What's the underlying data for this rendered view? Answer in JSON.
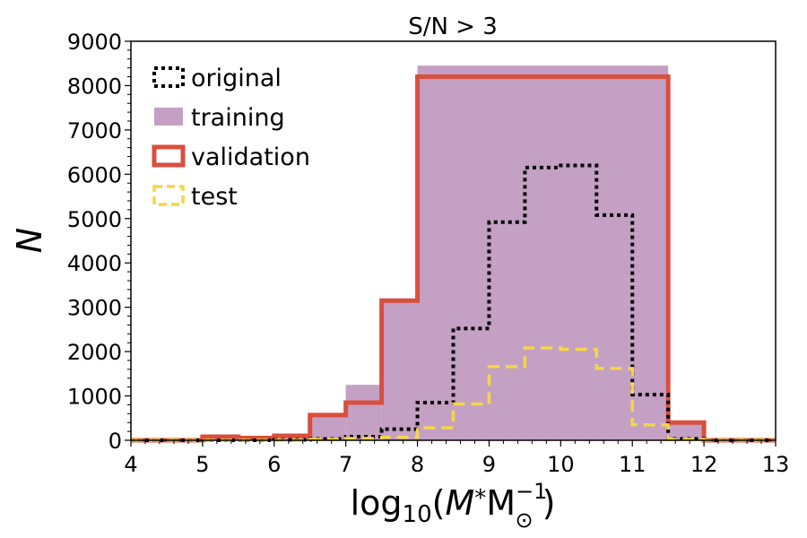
{
  "chart_data": {
    "type": "histogram",
    "title": "S/N > 3",
    "xlabel": {
      "prefix": "log",
      "sub": "10",
      "open": "(",
      "var": "M",
      "var_sub": "*",
      "unit": "M",
      "unit_sub": "⊙",
      "unit_sup": "−1",
      "close": ")"
    },
    "ylabel": "N",
    "xlim": [
      4,
      13
    ],
    "ylim": [
      0,
      9000
    ],
    "xticks": [
      4,
      5,
      6,
      7,
      8,
      9,
      10,
      11,
      12,
      13
    ],
    "yticks": [
      0,
      1000,
      2000,
      3000,
      4000,
      5000,
      6000,
      7000,
      8000,
      9000
    ],
    "series": [
      {
        "name": "training",
        "style": "filled",
        "color": "#c4a0c4",
        "edges": [
          4,
          4.5,
          5,
          5.5,
          6,
          6.5,
          7,
          7.5,
          8,
          11.5,
          12,
          12.5,
          13
        ],
        "values": [
          0,
          0,
          60,
          50,
          100,
          550,
          1250,
          3150,
          8450,
          400,
          0,
          0
        ]
      },
      {
        "name": "validation",
        "style": "solid",
        "color": "#d94f3d",
        "edges": [
          4,
          4.5,
          5,
          5.5,
          6,
          6.5,
          7,
          7.5,
          8,
          11.5,
          12,
          12.5,
          13
        ],
        "values": [
          0,
          0,
          80,
          50,
          100,
          570,
          850,
          3150,
          8200,
          400,
          0,
          0
        ]
      },
      {
        "name": "original",
        "style": "dotted",
        "color": "#000000",
        "edges": [
          4,
          4.5,
          5,
          5.5,
          6,
          6.5,
          7,
          7.5,
          8,
          8.5,
          9,
          9.5,
          10,
          10.5,
          11,
          11.5,
          12,
          12.5,
          13
        ],
        "values": [
          0,
          0,
          0,
          0,
          10,
          30,
          80,
          250,
          850,
          2520,
          4920,
          6150,
          6200,
          5080,
          1030,
          30,
          0,
          0
        ]
      },
      {
        "name": "test",
        "style": "dashed",
        "color": "#f5d547",
        "edges": [
          4,
          4.5,
          5,
          5.5,
          6,
          6.5,
          7,
          7.5,
          8,
          8.5,
          9,
          9.5,
          10,
          10.5,
          11,
          11.5,
          12,
          12.5,
          13
        ],
        "values": [
          0,
          0,
          0,
          0,
          0,
          20,
          40,
          70,
          280,
          820,
          1660,
          2080,
          2050,
          1620,
          350,
          20,
          0,
          0
        ]
      }
    ],
    "legend": {
      "position": "top-left",
      "order": [
        "original",
        "training",
        "validation",
        "test"
      ]
    }
  }
}
